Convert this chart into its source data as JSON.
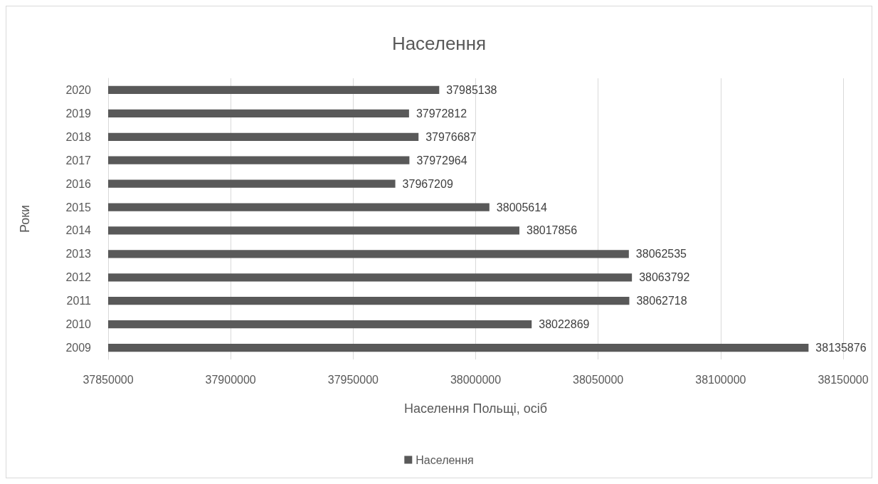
{
  "chart_data": {
    "type": "bar",
    "orientation": "horizontal",
    "title": "Населення",
    "xlabel": "Населення Польщі, осіб",
    "ylabel": "Роки",
    "categories": [
      "2020",
      "2019",
      "2018",
      "2017",
      "2016",
      "2015",
      "2014",
      "2013",
      "2012",
      "2011",
      "2010",
      "2009"
    ],
    "series": [
      {
        "name": "Населення",
        "color": "#595959",
        "values": [
          37985138,
          37972812,
          37976687,
          37972964,
          37967209,
          38005614,
          38017856,
          38062535,
          38063792,
          38062718,
          38022869,
          38135876
        ]
      }
    ],
    "xlim": [
      37850000,
      38150000
    ],
    "xticks": [
      37850000,
      37900000,
      37950000,
      38000000,
      38050000,
      38100000,
      38150000
    ],
    "grid": "x",
    "legend": "bottom",
    "data_labels": true
  }
}
